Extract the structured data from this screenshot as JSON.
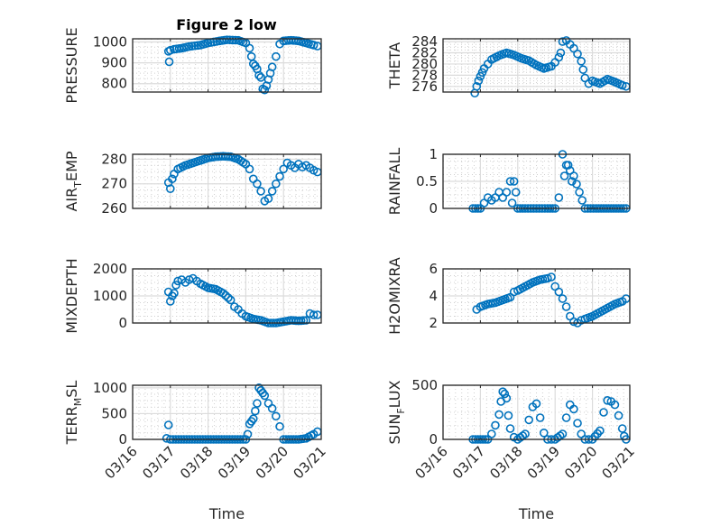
{
  "chart_data": [
    {
      "type": "scatter",
      "title": "Figure 2 low",
      "ylabel": "PRESSURE",
      "xlabel": "",
      "xlim": [
        "03/16",
        "03/21"
      ],
      "ylim": [
        760,
        1015
      ],
      "yticks": [
        800,
        900,
        1000
      ],
      "x_ticks": [
        "03/16",
        "03/17",
        "03/18",
        "03/19",
        "03/20",
        "03/21"
      ],
      "grid": true,
      "x": [
        0.95,
        0.97,
        1.0,
        1.1,
        1.3,
        1.5,
        1.8,
        2.0,
        2.3,
        2.5,
        2.8,
        3.0,
        3.1,
        3.15,
        3.2,
        3.25,
        3.3,
        3.35,
        3.4,
        3.45,
        3.5,
        3.55,
        3.6,
        3.65,
        3.7,
        3.8,
        3.9,
        4.0,
        4.2,
        4.4,
        4.6,
        4.8,
        4.9
      ],
      "values": [
        955,
        905,
        960,
        965,
        970,
        978,
        985,
        995,
        1005,
        1010,
        1008,
        995,
        970,
        930,
        895,
        885,
        870,
        840,
        830,
        775,
        770,
        790,
        820,
        850,
        880,
        930,
        990,
        1005,
        1008,
        1005,
        995,
        985,
        980
      ]
    },
    {
      "type": "scatter",
      "title": "",
      "ylabel": "THETA",
      "xlabel": "",
      "xlim": [
        "03/16",
        "03/21"
      ],
      "ylim": [
        275,
        284.5
      ],
      "yticks": [
        276,
        278,
        280,
        282,
        284
      ],
      "x_ticks": [
        "03/16",
        "03/17",
        "03/18",
        "03/19",
        "03/20",
        "03/21"
      ],
      "grid": true,
      "x": [
        0.85,
        0.9,
        0.95,
        1.0,
        1.05,
        1.1,
        1.2,
        1.3,
        1.5,
        1.7,
        1.9,
        2.1,
        2.3,
        2.5,
        2.7,
        2.9,
        3.0,
        3.1,
        3.15,
        3.2,
        3.3,
        3.4,
        3.5,
        3.6,
        3.7,
        3.75,
        3.8,
        3.9,
        4.0,
        4.2,
        4.4,
        4.6,
        4.8,
        4.9
      ],
      "values": [
        274.8,
        276,
        277,
        277.8,
        278.5,
        279.2,
        280,
        280.8,
        281.5,
        282,
        281.6,
        281,
        280.6,
        279.8,
        279.2,
        279.6,
        280.3,
        281.2,
        282,
        284,
        284.2,
        283.5,
        282.8,
        281.8,
        280.5,
        279,
        277.5,
        276.5,
        277,
        276.5,
        277.3,
        276.8,
        276.2,
        276
      ]
    },
    {
      "type": "scatter",
      "title": "",
      "ylabel": "AIR_TEMP",
      "xlabel": "",
      "xlim": [
        "03/16",
        "03/21"
      ],
      "ylim": [
        260,
        282
      ],
      "yticks": [
        260,
        270,
        280
      ],
      "x_ticks": [
        "03/16",
        "03/17",
        "03/18",
        "03/19",
        "03/20",
        "03/21"
      ],
      "grid": true,
      "x": [
        0.95,
        1.0,
        1.05,
        1.1,
        1.2,
        1.4,
        1.6,
        1.8,
        2.0,
        2.2,
        2.4,
        2.6,
        2.8,
        3.0,
        3.1,
        3.2,
        3.3,
        3.4,
        3.5,
        3.6,
        3.7,
        3.8,
        3.9,
        4.0,
        4.1,
        4.2,
        4.3,
        4.4,
        4.5,
        4.6,
        4.7,
        4.8,
        4.9
      ],
      "values": [
        270.5,
        268,
        272,
        274,
        276,
        277.5,
        278.5,
        279.5,
        280.5,
        281,
        281.2,
        281,
        280,
        278,
        276,
        272,
        270,
        267,
        263,
        264,
        267,
        270,
        273,
        276,
        278.5,
        277.5,
        276.5,
        278,
        276.8,
        277.5,
        276.5,
        275.5,
        274.8
      ]
    },
    {
      "type": "scatter",
      "title": "",
      "ylabel": "RAINFALL",
      "xlabel": "",
      "xlim": [
        "03/16",
        "03/21"
      ],
      "ylim": [
        0,
        1
      ],
      "yticks": [
        0,
        0.5,
        1
      ],
      "x_ticks": [
        "03/16",
        "03/17",
        "03/18",
        "03/19",
        "03/20",
        "03/21"
      ],
      "grid": true,
      "x": [
        0.8,
        1.0,
        1.1,
        1.2,
        1.3,
        1.4,
        1.5,
        1.6,
        1.7,
        1.8,
        1.85,
        1.9,
        1.95,
        2.0,
        2.2,
        2.5,
        2.8,
        3.0,
        3.1,
        3.2,
        3.25,
        3.3,
        3.35,
        3.4,
        3.45,
        3.5,
        3.8,
        4.1,
        4.5,
        4.9
      ],
      "values": [
        0,
        0,
        0.1,
        0.2,
        0.15,
        0.2,
        0.3,
        0.2,
        0.3,
        0.5,
        0.1,
        0.5,
        0.3,
        0,
        0,
        0,
        0,
        0,
        0.2,
        1,
        0.6,
        0.8,
        0.8,
        0.7,
        0.5,
        0.6,
        0,
        0,
        0,
        0
      ]
    },
    {
      "type": "scatter",
      "title": "",
      "ylabel": "MIXDEPTH",
      "xlabel": "",
      "xlim": [
        "03/16",
        "03/21"
      ],
      "ylim": [
        0,
        2000
      ],
      "yticks": [
        0,
        1000,
        2000
      ],
      "x_ticks": [
        "03/16",
        "03/17",
        "03/18",
        "03/19",
        "03/20",
        "03/21"
      ],
      "grid": true,
      "x": [
        0.95,
        1.0,
        1.05,
        1.1,
        1.15,
        1.2,
        1.3,
        1.4,
        1.5,
        1.6,
        1.7,
        1.8,
        2.0,
        2.2,
        2.4,
        2.6,
        2.7,
        2.8,
        2.9,
        3.0,
        3.2,
        3.4,
        3.6,
        3.8,
        4.0,
        4.2,
        4.4,
        4.6,
        4.7,
        4.8,
        4.9
      ],
      "values": [
        1150,
        800,
        1000,
        1100,
        1400,
        1550,
        1600,
        1500,
        1600,
        1650,
        1550,
        1450,
        1300,
        1250,
        1100,
        850,
        600,
        500,
        350,
        250,
        150,
        100,
        0,
        0,
        50,
        100,
        80,
        100,
        350,
        300,
        300
      ]
    },
    {
      "type": "scatter",
      "title": "",
      "ylabel": "H2OMIXRA",
      "xlabel": "",
      "xlim": [
        "03/16",
        "03/21"
      ],
      "ylim": [
        2,
        6
      ],
      "yticks": [
        2,
        4,
        6
      ],
      "x_ticks": [
        "03/16",
        "03/17",
        "03/18",
        "03/19",
        "03/20",
        "03/21"
      ],
      "grid": true,
      "x": [
        0.9,
        1.0,
        1.2,
        1.4,
        1.6,
        1.8,
        1.9,
        2.0,
        2.2,
        2.4,
        2.6,
        2.8,
        2.9,
        3.0,
        3.1,
        3.2,
        3.3,
        3.4,
        3.5,
        3.6,
        3.7,
        3.8,
        4.0,
        4.2,
        4.4,
        4.6,
        4.8,
        4.9
      ],
      "values": [
        3.0,
        3.2,
        3.4,
        3.5,
        3.7,
        3.9,
        4.3,
        4.4,
        4.7,
        5.0,
        5.2,
        5.3,
        5.4,
        4.7,
        4.3,
        3.8,
        3.2,
        2.5,
        2.1,
        2.0,
        2.2,
        2.3,
        2.5,
        2.8,
        3.1,
        3.4,
        3.6,
        3.8
      ]
    },
    {
      "type": "scatter",
      "title": "",
      "ylabel": "TERR_MSL",
      "xlabel": "Time",
      "xlim": [
        "03/16",
        "03/21"
      ],
      "ylim": [
        0,
        1050
      ],
      "yticks": [
        0,
        500,
        1000
      ],
      "x_ticks": [
        "03/16",
        "03/17",
        "03/18",
        "03/19",
        "03/20",
        "03/21"
      ],
      "grid": true,
      "x": [
        0.9,
        0.95,
        1.0,
        1.5,
        2.0,
        2.5,
        3.0,
        3.05,
        3.1,
        3.15,
        3.2,
        3.25,
        3.3,
        3.35,
        3.4,
        3.45,
        3.5,
        3.6,
        3.7,
        3.8,
        3.9,
        4.0,
        4.2,
        4.4,
        4.6,
        4.8,
        4.9
      ],
      "values": [
        20,
        280,
        0,
        0,
        0,
        0,
        0,
        100,
        300,
        350,
        400,
        550,
        700,
        1000,
        950,
        900,
        850,
        700,
        600,
        450,
        250,
        0,
        0,
        0,
        20,
        100,
        150
      ]
    },
    {
      "type": "scatter",
      "title": "",
      "ylabel": "SUN_FLUX",
      "xlabel": "Time",
      "xlim": [
        "03/16",
        "03/21"
      ],
      "ylim": [
        0,
        500
      ],
      "yticks": [
        0,
        500
      ],
      "x_ticks": [
        "03/16",
        "03/17",
        "03/18",
        "03/19",
        "03/20",
        "03/21"
      ],
      "grid": true,
      "x": [
        0.8,
        1.0,
        1.2,
        1.3,
        1.4,
        1.5,
        1.55,
        1.6,
        1.65,
        1.7,
        1.75,
        1.8,
        1.9,
        2.0,
        2.2,
        2.3,
        2.4,
        2.5,
        2.6,
        2.7,
        2.8,
        2.9,
        3.0,
        3.2,
        3.3,
        3.4,
        3.5,
        3.6,
        3.7,
        3.8,
        3.9,
        4.0,
        4.2,
        4.3,
        4.4,
        4.5,
        4.6,
        4.7,
        4.8,
        4.85,
        4.9
      ],
      "values": [
        0,
        0,
        0,
        50,
        130,
        230,
        350,
        440,
        420,
        380,
        220,
        100,
        20,
        0,
        50,
        180,
        300,
        330,
        200,
        60,
        0,
        0,
        0,
        50,
        200,
        320,
        280,
        150,
        50,
        0,
        0,
        0,
        80,
        250,
        360,
        350,
        320,
        220,
        100,
        30,
        0
      ]
    }
  ]
}
